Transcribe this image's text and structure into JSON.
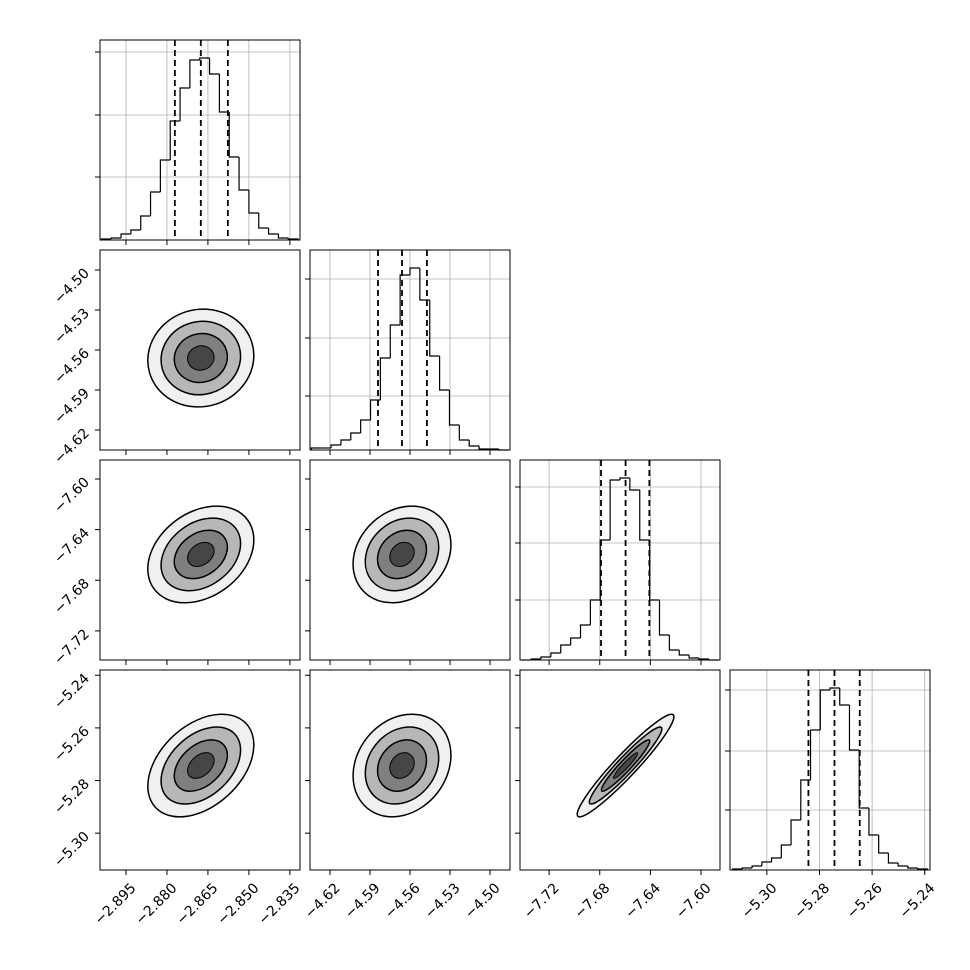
{
  "chart_data": {
    "type": "corner",
    "color": "#000000",
    "sigma_levels": [
      0.5,
      1,
      1.5,
      2
    ],
    "parameters": [
      {
        "lim": [
          -2.9045,
          -2.8313
        ],
        "ticks": [
          {
            "value": -2.895,
            "label": "−2.895"
          },
          {
            "value": -2.88,
            "label": "−2.880"
          },
          {
            "value": -2.865,
            "label": "−2.865"
          },
          {
            "value": -2.85,
            "label": "−2.850"
          },
          {
            "value": -2.835,
            "label": "−2.835"
          }
        ],
        "bins": [
          -2.904,
          -2.9004,
          -2.8968,
          -2.8932,
          -2.8896,
          -2.886,
          -2.8824,
          -2.8788,
          -2.8752,
          -2.8716,
          -2.868,
          -2.8644,
          -2.8608,
          -2.8572,
          -2.8536,
          -2.85,
          -2.8464,
          -2.8428,
          -2.8392,
          -2.8356,
          -2.832
        ],
        "counts": [
          0.005,
          0.01,
          0.03,
          0.05,
          0.12,
          0.24,
          0.4,
          0.595,
          0.76,
          0.9,
          0.91,
          0.83,
          0.64,
          0.415,
          0.25,
          0.135,
          0.06,
          0.03,
          0.01,
          0.005
        ],
        "hist_ylim": [
          0,
          1
        ],
        "hist_yticks": [
          0.315,
          0.625,
          0.94
        ],
        "quantiles": [
          -2.8771,
          -2.8676,
          -2.8577
        ]
      },
      {
        "lim": [
          -4.635,
          -4.485
        ],
        "ticks": [
          {
            "value": -4.62,
            "label": "−4.62"
          },
          {
            "value": -4.59,
            "label": "−4.59"
          },
          {
            "value": -4.56,
            "label": "−4.56"
          },
          {
            "value": -4.53,
            "label": "−4.53"
          },
          {
            "value": -4.5,
            "label": "−4.50"
          }
        ],
        "bins": [
          -4.634,
          -4.6266,
          -4.6192,
          -4.6118,
          -4.6044,
          -4.597,
          -4.5896,
          -4.5822,
          -4.5748,
          -4.5674,
          -4.56,
          -4.5526,
          -4.5452,
          -4.5378,
          -4.5304,
          -4.523,
          -4.5156,
          -4.5082,
          -4.5008,
          -4.4934,
          -4.486
        ],
        "counts": [
          0.01,
          0.01,
          0.025,
          0.05,
          0.085,
          0.15,
          0.25,
          0.46,
          0.625,
          0.875,
          0.91,
          0.75,
          0.47,
          0.3,
          0.125,
          0.05,
          0.02,
          0.005,
          0.005,
          0
        ],
        "hist_ylim": [
          0,
          1
        ],
        "hist_yticks": [
          0.27,
          0.56,
          0.855
        ],
        "quantiles": [
          -4.584,
          -4.566,
          -4.5473
        ]
      },
      {
        "lim": [
          -7.743,
          -7.585
        ],
        "ticks": [
          {
            "value": -7.72,
            "label": "−7.72"
          },
          {
            "value": -7.68,
            "label": "−7.68"
          },
          {
            "value": -7.64,
            "label": "−7.64"
          },
          {
            "value": -7.6,
            "label": "−7.60"
          }
        ],
        "bins": [
          -7.742,
          -7.7342,
          -7.7264,
          -7.7186,
          -7.7108,
          -7.703,
          -7.6952,
          -7.6874,
          -7.6796,
          -7.6718,
          -7.664,
          -7.6562,
          -7.6484,
          -7.6406,
          -7.6328,
          -7.625,
          -7.6172,
          -7.6094,
          -7.6016,
          -7.5938,
          -7.586
        ],
        "counts": [
          0,
          0.005,
          0.015,
          0.035,
          0.075,
          0.11,
          0.175,
          0.3,
          0.6,
          0.9,
          0.91,
          0.85,
          0.6,
          0.3,
          0.125,
          0.05,
          0.025,
          0.01,
          0.005,
          0
        ],
        "hist_ylim": [
          0,
          1
        ],
        "hist_yticks": [
          0.3,
          0.585,
          0.865
        ],
        "quantiles": [
          -7.679,
          -7.6596,
          -7.6408
        ]
      },
      {
        "lim": [
          -5.314,
          -5.238
        ],
        "ticks": [
          {
            "value": -5.3,
            "label": "−5.30"
          },
          {
            "value": -5.28,
            "label": "−5.28"
          },
          {
            "value": -5.26,
            "label": "−5.26"
          },
          {
            "value": -5.24,
            "label": "−5.24"
          }
        ],
        "bins": [
          -5.313,
          -5.3093,
          -5.3056,
          -5.3019,
          -5.2982,
          -5.2945,
          -5.2908,
          -5.2871,
          -5.2834,
          -5.2797,
          -5.276,
          -5.2723,
          -5.2686,
          -5.2649,
          -5.2612,
          -5.2575,
          -5.2538,
          -5.2501,
          -5.2464,
          -5.2427,
          -5.239
        ],
        "counts": [
          0.005,
          0.01,
          0.02,
          0.04,
          0.06,
          0.125,
          0.25,
          0.45,
          0.7,
          0.9,
          0.91,
          0.825,
          0.6,
          0.31,
          0.175,
          0.085,
          0.035,
          0.02,
          0.01,
          0.005
        ],
        "hist_ylim": [
          0,
          1
        ],
        "hist_yticks": [
          0.3,
          0.595,
          0.9
        ],
        "quantiles": [
          -5.2842,
          -5.2743,
          -5.2647
        ]
      }
    ],
    "correlations": [
      [
        0.05
      ],
      [
        0.3,
        0.2
      ],
      [
        0.4,
        0.2,
        0.95
      ]
    ]
  }
}
